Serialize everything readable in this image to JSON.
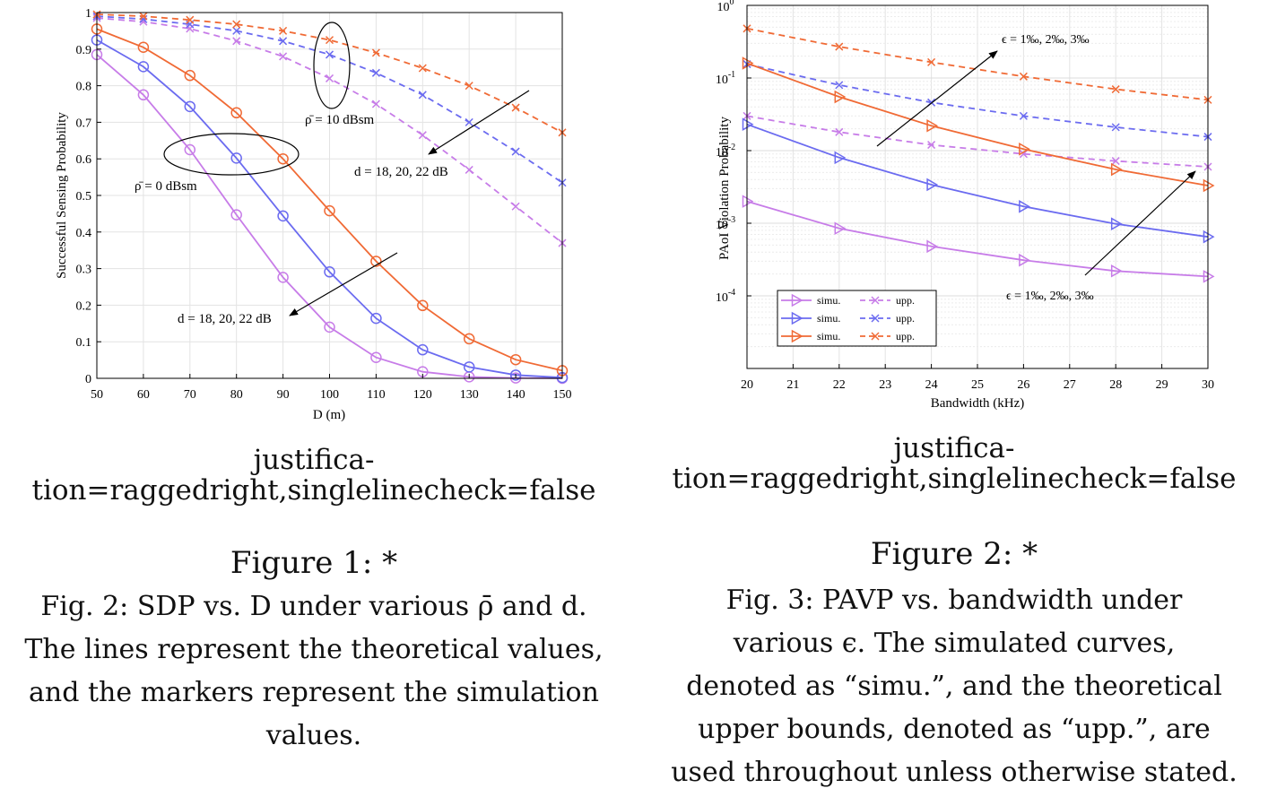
{
  "chart_data": [
    {
      "type": "line",
      "xlabel": "D (m)",
      "ylabel": "Successful Sensing Probability",
      "xlim": [
        50,
        150
      ],
      "ylim": [
        0,
        1
      ],
      "x_ticks": [
        50,
        60,
        70,
        80,
        90,
        100,
        110,
        120,
        130,
        140,
        150
      ],
      "y_ticks": [
        0,
        0.1,
        0.2,
        0.3,
        0.4,
        0.5,
        0.6,
        0.7,
        0.8,
        0.9,
        1
      ],
      "grid": true,
      "colors": [
        "#c77ce8",
        "#6b6bf0",
        "#f06a35"
      ],
      "x": [
        50,
        60,
        70,
        80,
        90,
        100,
        110,
        120,
        130,
        140,
        150
      ],
      "series": [
        {
          "group": "0dBsm",
          "style": "solid",
          "marker": "circle",
          "color": "#c77ce8",
          "values": [
            0.885,
            0.775,
            0.625,
            0.447,
            0.276,
            0.14,
            0.057,
            0.018,
            0.004,
            0.001,
            0.0
          ]
        },
        {
          "group": "0dBsm",
          "style": "solid",
          "marker": "circle",
          "color": "#6b6bf0",
          "values": [
            0.925,
            0.852,
            0.743,
            0.602,
            0.444,
            0.291,
            0.164,
            0.078,
            0.031,
            0.009,
            0.002
          ]
        },
        {
          "group": "0dBsm",
          "style": "solid",
          "marker": "circle",
          "color": "#f06a35",
          "values": [
            0.955,
            0.905,
            0.828,
            0.726,
            0.6,
            0.458,
            0.32,
            0.199,
            0.108,
            0.051,
            0.021
          ]
        },
        {
          "group": "10dBsm",
          "style": "dashed",
          "marker": "x",
          "color": "#c77ce8",
          "values": [
            0.985,
            0.975,
            0.956,
            0.922,
            0.88,
            0.82,
            0.75,
            0.665,
            0.57,
            0.47,
            0.37
          ]
        },
        {
          "group": "10dBsm",
          "style": "dashed",
          "marker": "x",
          "color": "#6b6bf0",
          "values": [
            0.99,
            0.982,
            0.968,
            0.95,
            0.922,
            0.885,
            0.835,
            0.775,
            0.7,
            0.62,
            0.535
          ]
        },
        {
          "group": "10dBsm",
          "style": "dashed",
          "marker": "x",
          "color": "#f06a35",
          "values": [
            0.995,
            0.99,
            0.98,
            0.968,
            0.95,
            0.925,
            0.89,
            0.848,
            0.8,
            0.74,
            0.672
          ]
        }
      ],
      "annotations": [
        {
          "id": "rho10",
          "text": "ρ̄ = 10 dBsm"
        },
        {
          "id": "rho0",
          "text": "ρ̄ = 0 dBsm"
        },
        {
          "id": "d_upper",
          "text": "d  = 18, 20, 22 dB"
        },
        {
          "id": "d_lower",
          "text": "d  = 18, 20, 22 dB"
        }
      ]
    },
    {
      "type": "line",
      "xlabel": "Bandwidth (kHz)",
      "ylabel": "PAoI Violation Probability",
      "yscale": "log",
      "xlim": [
        20,
        30
      ],
      "ylim": [
        1e-05,
        1
      ],
      "x_ticks": [
        20,
        21,
        22,
        23,
        24,
        25,
        26,
        27,
        28,
        29,
        30
      ],
      "y_ticks": [
        {
          "value": 1,
          "base": "10",
          "exp": "0"
        },
        {
          "value": 0.1,
          "base": "10",
          "exp": "-1"
        },
        {
          "value": 0.01,
          "base": "10",
          "exp": "-2"
        },
        {
          "value": 0.001,
          "base": "10",
          "exp": "-3"
        },
        {
          "value": 0.0001,
          "base": "10",
          "exp": "-4"
        }
      ],
      "grid": true,
      "legend_position": "bottom-left",
      "x": [
        20,
        22,
        24,
        26,
        28,
        30
      ],
      "series": [
        {
          "name": "simu.",
          "style": "solid",
          "marker": "triangle-right",
          "color": "#c77ce8",
          "values": [
            0.002,
            0.00085,
            0.00048,
            0.00031,
            0.00022,
            0.000185
          ]
        },
        {
          "name": "upp.",
          "style": "dashed",
          "marker": "x",
          "color": "#c77ce8",
          "values": [
            0.03,
            0.018,
            0.012,
            0.009,
            0.0072,
            0.006
          ]
        },
        {
          "name": "simu.",
          "style": "solid",
          "marker": "triangle-right",
          "color": "#6b6bf0",
          "values": [
            0.023,
            0.008,
            0.0034,
            0.0017,
            0.00098,
            0.00065
          ]
        },
        {
          "name": "upp.",
          "style": "dashed",
          "marker": "x",
          "color": "#6b6bf0",
          "values": [
            0.155,
            0.08,
            0.046,
            0.03,
            0.021,
            0.0155
          ]
        },
        {
          "name": "simu.",
          "style": "solid",
          "marker": "triangle-right",
          "color": "#f06a35",
          "values": [
            0.16,
            0.055,
            0.022,
            0.0105,
            0.0055,
            0.0033
          ]
        },
        {
          "name": "upp.",
          "style": "dashed",
          "marker": "x",
          "color": "#f06a35",
          "values": [
            0.48,
            0.27,
            0.165,
            0.105,
            0.07,
            0.05
          ]
        }
      ],
      "annotations": [
        {
          "id": "eps_top",
          "text": "ϵ = 1‰, 2‰, 3‰"
        },
        {
          "id": "eps_bottom",
          "text": "ϵ = 1‰, 2‰, 3‰"
        }
      ]
    }
  ],
  "captions": {
    "fig1": {
      "junk_line1": "justifica-",
      "junk_line2": "tion=raggedright,singlelinecheck=false",
      "label": "Figure 1: *",
      "text1": "Fig. 2: SDP vs. D under various ρ̄ and d.",
      "text2": "The lines represent the theoretical values,",
      "text3": "and the markers represent the simulation",
      "text4": "values."
    },
    "fig2": {
      "junk_line1": "justifica-",
      "junk_line2": "tion=raggedright,singlelinecheck=false",
      "label": "Figure 2: *",
      "text1": "Fig. 3: PAVP vs. bandwidth under",
      "text2": "various ϵ. The simulated    curves,",
      "text3": "denoted as “simu.”, and the theoretical",
      "text4": "upper bounds,    denoted as “upp.”, are",
      "text5": "used throughout unless otherwise stated."
    }
  }
}
